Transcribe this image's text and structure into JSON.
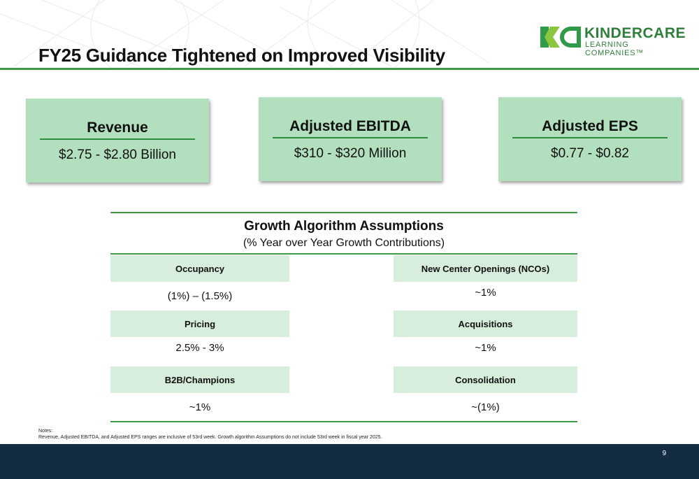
{
  "slide": {
    "title": "FY25 Guidance Tightened on Improved Visibility",
    "page_number": "9"
  },
  "logo": {
    "name": "KINDERCARE",
    "subtitle": "LEARNING COMPANIES™"
  },
  "guidance": [
    {
      "label": "Revenue",
      "value": "$2.75 - $2.80 Billion"
    },
    {
      "label": "Adjusted EBITDA",
      "value": "$310 - $320 Million"
    },
    {
      "label": "Adjusted EPS",
      "value": "$0.77 - $0.82"
    }
  ],
  "growth": {
    "title": "Growth Algorithm Assumptions",
    "subtitle": "(% Year over Year Growth Contributions)",
    "left": [
      {
        "label": "Occupancy",
        "value": "(1%) – (1.5%)"
      },
      {
        "label": "Pricing",
        "value": "2.5% - 3%"
      },
      {
        "label": "B2B/Champions",
        "value": "~1%"
      }
    ],
    "right": [
      {
        "label": "New Center Openings (NCOs)",
        "value": "~1%"
      },
      {
        "label": "Acquisitions",
        "value": "~1%"
      },
      {
        "label": "Consolidation",
        "value": "~(1%)"
      }
    ]
  },
  "notes": {
    "heading": "Notes:",
    "text": "Revenue, Adjusted EBITDA, and Adjusted EPS ranges are inclusive of 53rd week.  Growth algorithm Assumptions do not include 53rd week in fiscal year 2025."
  },
  "colors": {
    "accent_green": "#3f9a44",
    "card_green": "#b2dfbd",
    "header_light_green": "#d8eedd",
    "footer_navy": "#142c42"
  }
}
